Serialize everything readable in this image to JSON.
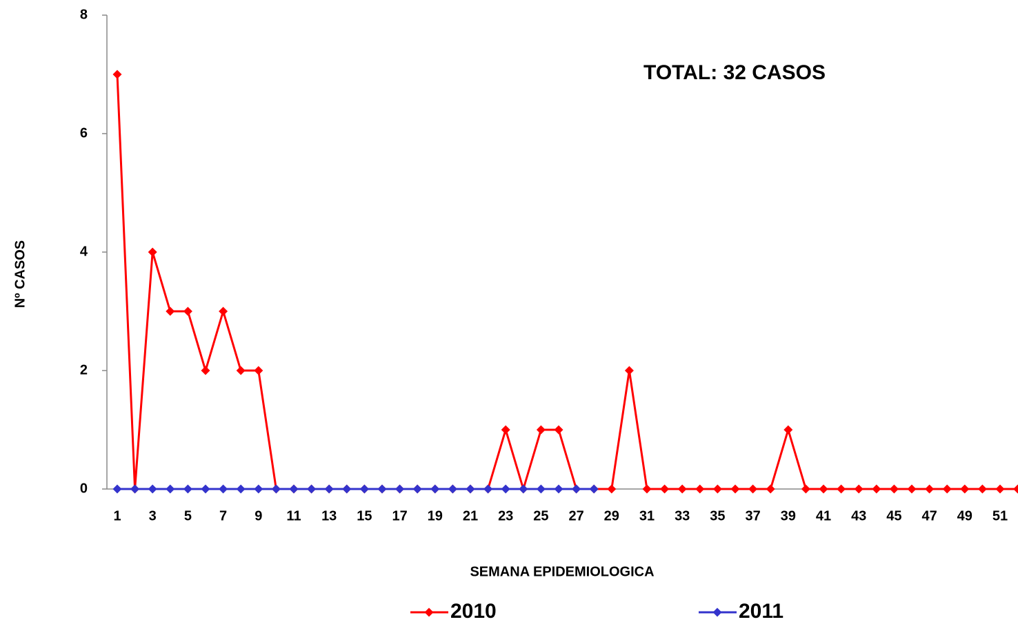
{
  "chart_data": {
    "type": "line",
    "annotation": "TOTAL: 32 CASOS",
    "xlabel": "SEMANA EPIDEMIOLOGICA",
    "ylabel": "Nº CASOS",
    "categories": [
      1,
      null,
      3,
      null,
      5,
      null,
      7,
      null,
      9,
      null,
      11,
      null,
      13,
      null,
      15,
      null,
      17,
      null,
      19,
      null,
      21,
      null,
      23,
      null,
      25,
      null,
      27,
      null,
      29,
      null,
      31,
      null,
      33,
      null,
      35,
      null,
      37,
      null,
      39,
      null,
      41,
      null,
      43,
      null,
      45,
      null,
      47,
      null,
      49,
      null,
      51,
      null
    ],
    "series": [
      {
        "name": "2010",
        "color": "#ff0000",
        "values": [
          7,
          0,
          4,
          3,
          3,
          2,
          3,
          2,
          2,
          0,
          0,
          0,
          0,
          0,
          0,
          0,
          0,
          0,
          0,
          0,
          0,
          0,
          1,
          0,
          1,
          1,
          0,
          0,
          0,
          2,
          0,
          0,
          0,
          0,
          0,
          0,
          0,
          0,
          1,
          0,
          0,
          0,
          0,
          0,
          0,
          0,
          0,
          0,
          0,
          0,
          0,
          0
        ]
      },
      {
        "name": "2011",
        "color": "#3333cc",
        "values": [
          0,
          0,
          0,
          0,
          0,
          0,
          0,
          0,
          0,
          0,
          0,
          0,
          0,
          0,
          0,
          0,
          0,
          0,
          0,
          0,
          0,
          0,
          0,
          0,
          0,
          0,
          0,
          0,
          null,
          null,
          null,
          null,
          null,
          null,
          null,
          null,
          null,
          null,
          null,
          null,
          null,
          null,
          null,
          null,
          null,
          null,
          null,
          null,
          null,
          null,
          null,
          null
        ]
      }
    ],
    "ylim": [
      0,
      8
    ],
    "yticks": [
      0,
      2,
      4,
      6,
      8
    ],
    "legend": "bottom"
  }
}
